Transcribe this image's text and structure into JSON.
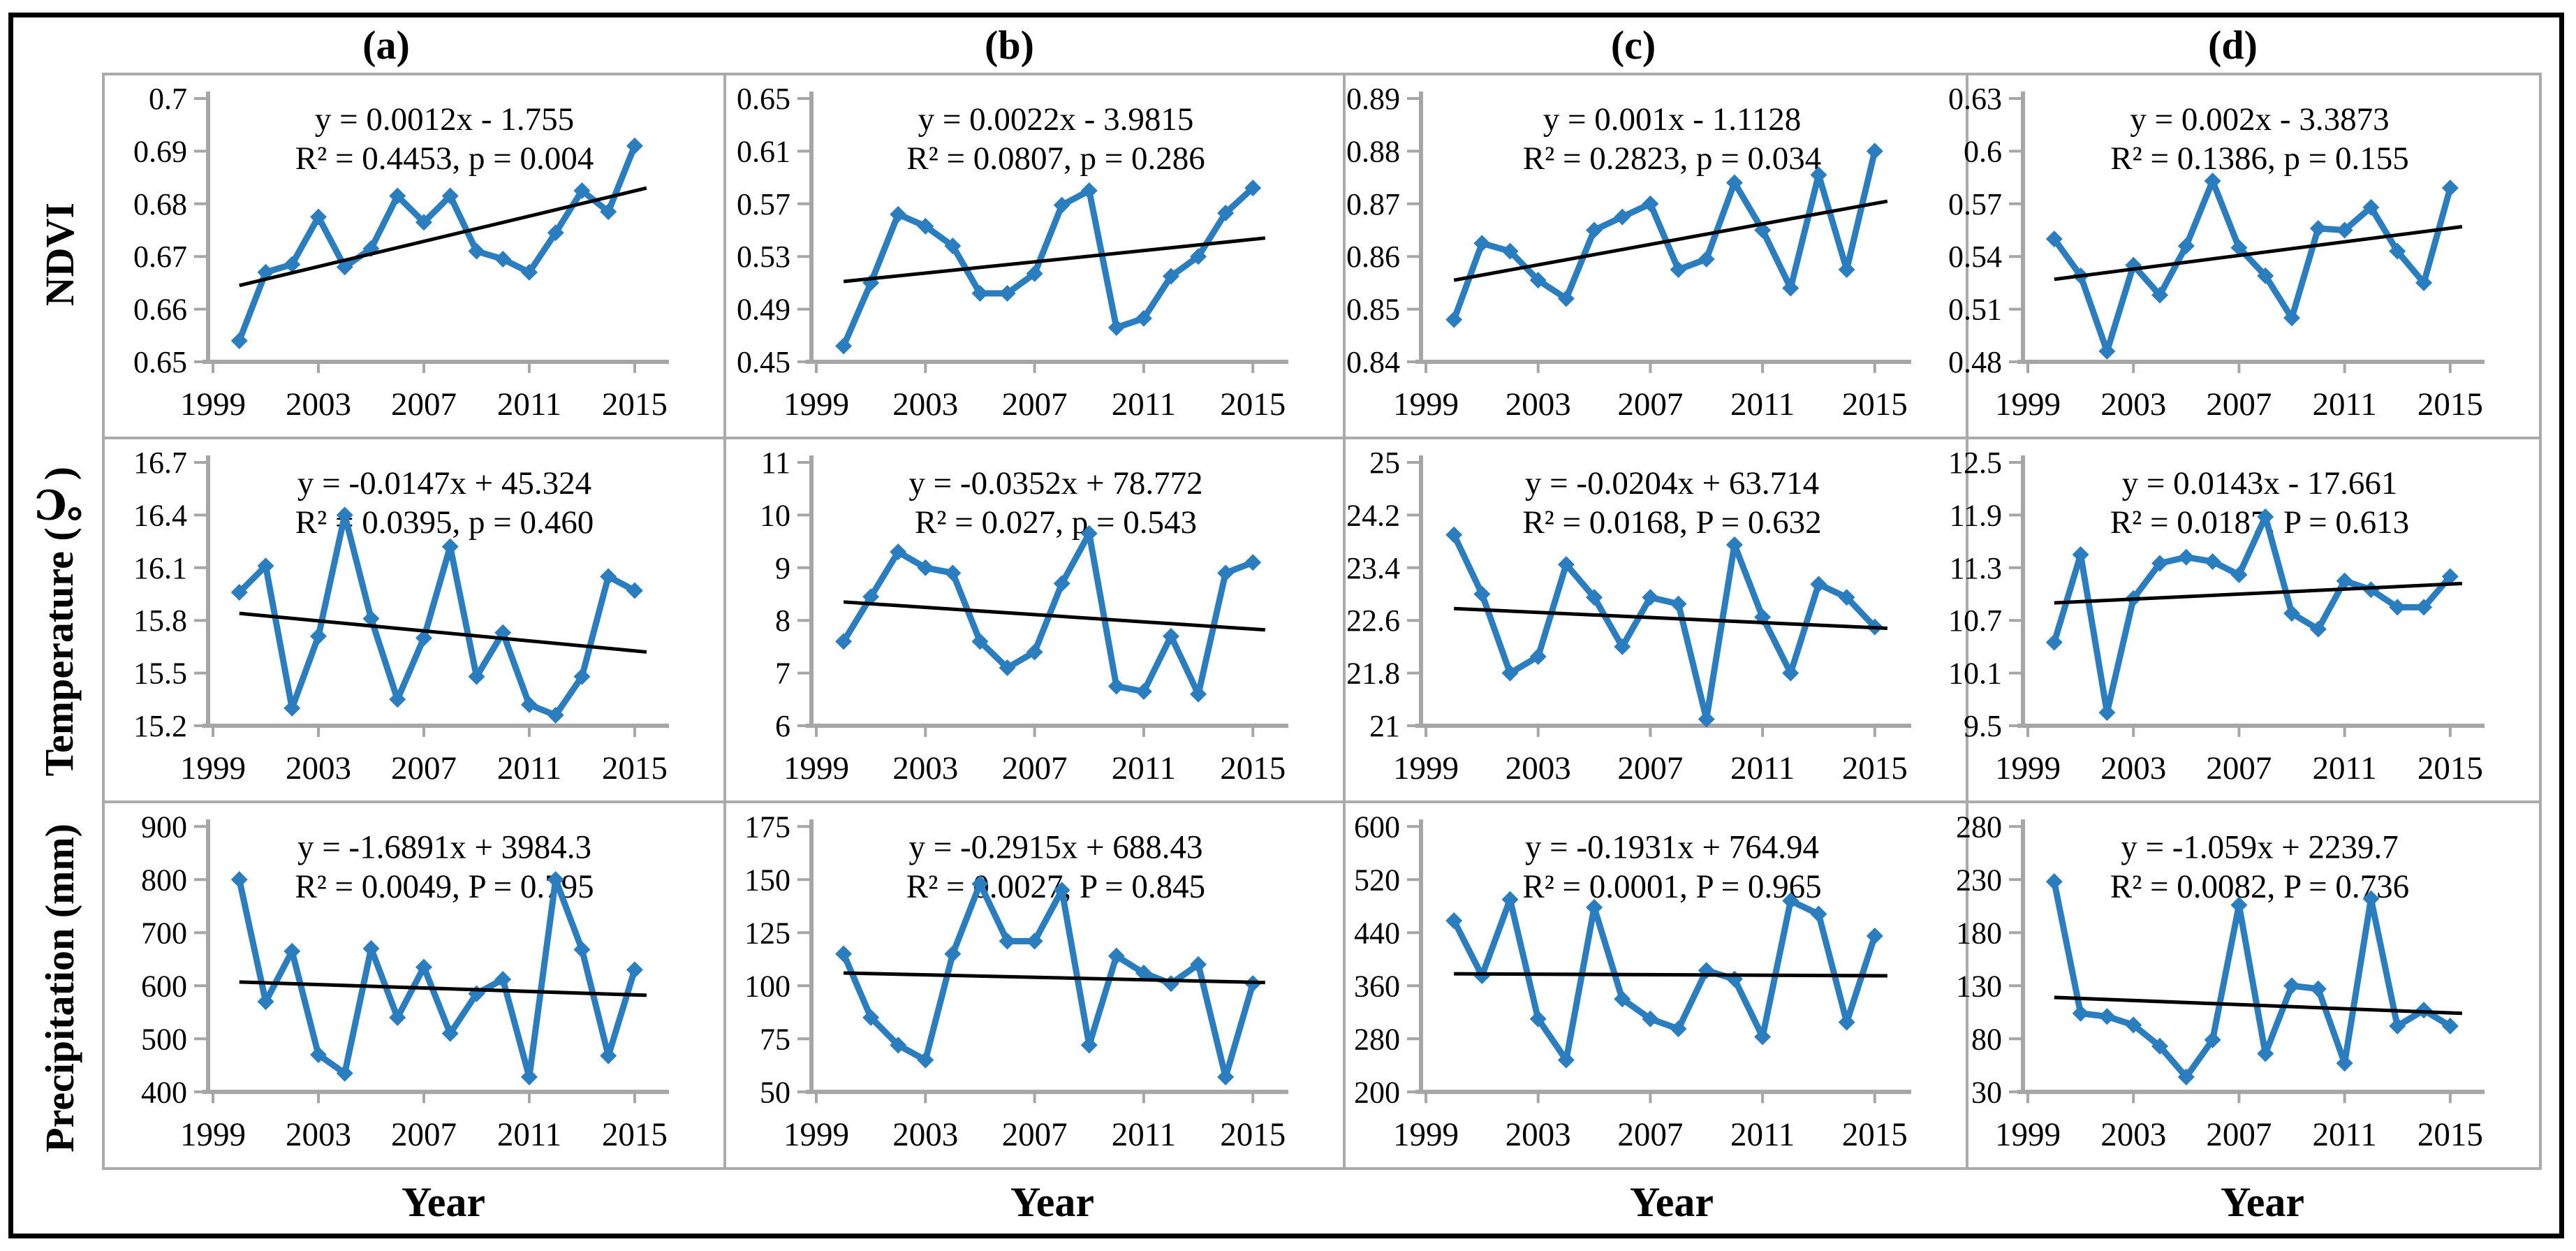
{
  "figure": {
    "col_headers": [
      "(a)",
      "(b)",
      "(c)",
      "(d)"
    ],
    "row_labels": [
      "NDVI",
      "Temperature (℃)",
      "Precipitation (mm)"
    ],
    "x_axis_label": "Year",
    "x_tick_labels": [
      "1999",
      "2003",
      "2007",
      "2011",
      "2015"
    ],
    "colors": {
      "line": "#2A7EBF",
      "trend": "#000000",
      "axis": "#A6A6A6",
      "panel_border": "#ABABAB",
      "text": "#000000"
    }
  },
  "chart_data": [
    {
      "id": "ndvi-a",
      "type": "line",
      "row": "NDVI",
      "col": "(a)",
      "equation": "y = 0.0012x - 1.755",
      "stats": "R² = 0.4453, p = 0.004",
      "ytick_labels": [
        "0.65",
        "0.66",
        "0.67",
        "0.68",
        "0.69",
        "0.7"
      ],
      "yticks": [
        0.65,
        0.66,
        0.67,
        0.68,
        0.69,
        0.7
      ],
      "ylim": [
        0.65,
        0.7
      ],
      "x": [
        2000,
        2001,
        2002,
        2003,
        2004,
        2005,
        2006,
        2007,
        2008,
        2009,
        2010,
        2011,
        2012,
        2013,
        2014,
        2015
      ],
      "values": [
        0.654,
        0.667,
        0.6685,
        0.6775,
        0.668,
        0.6715,
        0.6815,
        0.6765,
        0.6815,
        0.671,
        0.6695,
        0.667,
        0.6745,
        0.6825,
        0.6785,
        0.691
      ],
      "trend": [
        0.6645,
        0.683
      ]
    },
    {
      "id": "ndvi-b",
      "type": "line",
      "row": "NDVI",
      "col": "(b)",
      "equation": "y = 0.0022x - 3.9815",
      "stats": "R² = 0.0807, p = 0.286",
      "ytick_labels": [
        "0.45",
        "0.49",
        "0.53",
        "0.57",
        "0.61",
        "0.65"
      ],
      "yticks": [
        0.45,
        0.49,
        0.53,
        0.57,
        0.61,
        0.65
      ],
      "ylim": [
        0.45,
        0.65
      ],
      "x": [
        2000,
        2001,
        2002,
        2003,
        2004,
        2005,
        2006,
        2007,
        2008,
        2009,
        2010,
        2011,
        2012,
        2013,
        2014,
        2015
      ],
      "values": [
        0.462,
        0.51,
        0.562,
        0.553,
        0.538,
        0.502,
        0.502,
        0.517,
        0.569,
        0.58,
        0.476,
        0.483,
        0.515,
        0.53,
        0.563,
        0.582
      ],
      "trend": [
        0.511,
        0.544
      ]
    },
    {
      "id": "ndvi-c",
      "type": "line",
      "row": "NDVI",
      "col": "(c)",
      "equation": "y = 0.001x - 1.1128",
      "stats": "R² = 0.2823, p = 0.034",
      "ytick_labels": [
        "0.84",
        "0.85",
        "0.86",
        "0.87",
        "0.88",
        "0.89"
      ],
      "yticks": [
        0.84,
        0.85,
        0.86,
        0.87,
        0.88,
        0.89
      ],
      "ylim": [
        0.84,
        0.89
      ],
      "x": [
        2000,
        2001,
        2002,
        2003,
        2004,
        2005,
        2006,
        2007,
        2008,
        2009,
        2010,
        2011,
        2012,
        2013,
        2014,
        2015
      ],
      "values": [
        0.848,
        0.8625,
        0.861,
        0.8555,
        0.852,
        0.865,
        0.8675,
        0.87,
        0.8575,
        0.8595,
        0.874,
        0.865,
        0.854,
        0.8755,
        0.8575,
        0.88
      ],
      "trend": [
        0.8555,
        0.8705
      ]
    },
    {
      "id": "ndvi-d",
      "type": "line",
      "row": "NDVI",
      "col": "(d)",
      "equation": "y = 0.002x - 3.3873",
      "stats": "R² = 0.1386, p = 0.155",
      "ytick_labels": [
        "0.48",
        "0.51",
        "0.54",
        "0.57",
        "0.6",
        "0.63"
      ],
      "yticks": [
        0.48,
        0.51,
        0.54,
        0.57,
        0.6,
        0.63
      ],
      "ylim": [
        0.48,
        0.63
      ],
      "x": [
        2000,
        2001,
        2002,
        2003,
        2004,
        2005,
        2006,
        2007,
        2008,
        2009,
        2010,
        2011,
        2012,
        2013,
        2014,
        2015
      ],
      "values": [
        0.55,
        0.529,
        0.486,
        0.535,
        0.518,
        0.546,
        0.583,
        0.545,
        0.529,
        0.505,
        0.556,
        0.555,
        0.568,
        0.543,
        0.525,
        0.579
      ],
      "trend": [
        0.527,
        0.557
      ]
    },
    {
      "id": "temp-a",
      "type": "line",
      "row": "Temperature (℃)",
      "col": "(a)",
      "equation": "y = -0.0147x + 45.324",
      "stats": "R² = 0.0395, p = 0.460",
      "ytick_labels": [
        "15.2",
        "15.5",
        "15.8",
        "16.1",
        "16.4",
        "16.7"
      ],
      "yticks": [
        15.2,
        15.5,
        15.8,
        16.1,
        16.4,
        16.7
      ],
      "ylim": [
        15.2,
        16.7
      ],
      "x": [
        2000,
        2001,
        2002,
        2003,
        2004,
        2005,
        2006,
        2007,
        2008,
        2009,
        2010,
        2011,
        2012,
        2013,
        2014,
        2015
      ],
      "values": [
        15.96,
        16.11,
        15.3,
        15.71,
        16.4,
        15.81,
        15.35,
        15.7,
        16.22,
        15.48,
        15.73,
        15.32,
        15.26,
        15.48,
        16.05,
        15.97
      ],
      "trend": [
        15.84,
        15.62
      ]
    },
    {
      "id": "temp-b",
      "type": "line",
      "row": "Temperature (℃)",
      "col": "(b)",
      "equation": "y = -0.0352x + 78.772",
      "stats": "R² = 0.027, p = 0.543",
      "ytick_labels": [
        "6",
        "7",
        "8",
        "9",
        "10",
        "11"
      ],
      "yticks": [
        6,
        7,
        8,
        9,
        10,
        11
      ],
      "ylim": [
        6,
        11
      ],
      "x": [
        2000,
        2001,
        2002,
        2003,
        2004,
        2005,
        2006,
        2007,
        2008,
        2009,
        2010,
        2011,
        2012,
        2013,
        2014,
        2015
      ],
      "values": [
        7.6,
        8.45,
        9.3,
        9.0,
        8.9,
        7.6,
        7.1,
        7.4,
        8.7,
        9.65,
        6.75,
        6.65,
        7.7,
        6.6,
        8.9,
        9.1
      ],
      "trend": [
        8.35,
        7.82
      ]
    },
    {
      "id": "temp-c",
      "type": "line",
      "row": "Temperature (℃)",
      "col": "(c)",
      "equation": "y = -0.0204x + 63.714",
      "stats": "R² = 0.0168, P = 0.632",
      "ytick_labels": [
        "21",
        "21.8",
        "22.6",
        "23.4",
        "24.2",
        "25"
      ],
      "yticks": [
        21,
        21.8,
        22.6,
        23.4,
        24.2,
        25
      ],
      "ylim": [
        21,
        25
      ],
      "x": [
        2000,
        2001,
        2002,
        2003,
        2004,
        2005,
        2006,
        2007,
        2008,
        2009,
        2010,
        2011,
        2012,
        2013,
        2014,
        2015
      ],
      "values": [
        23.9,
        23.0,
        21.8,
        22.05,
        23.45,
        22.95,
        22.2,
        22.95,
        22.85,
        21.1,
        23.75,
        22.65,
        21.8,
        23.15,
        22.95,
        22.5
      ],
      "trend": [
        22.78,
        22.48
      ]
    },
    {
      "id": "temp-d",
      "type": "line",
      "row": "Temperature (℃)",
      "col": "(d)",
      "equation": "y = 0.0143x - 17.661",
      "stats": "R² = 0.0187, P = 0.613",
      "ytick_labels": [
        "9.5",
        "10.1",
        "10.7",
        "11.3",
        "11.9",
        "12.5"
      ],
      "yticks": [
        9.5,
        10.1,
        10.7,
        11.3,
        11.9,
        12.5
      ],
      "ylim": [
        9.5,
        12.5
      ],
      "x": [
        2000,
        2001,
        2002,
        2003,
        2004,
        2005,
        2006,
        2007,
        2008,
        2009,
        2010,
        2011,
        2012,
        2013,
        2014,
        2015
      ],
      "values": [
        10.45,
        11.45,
        9.65,
        10.95,
        11.35,
        11.42,
        11.37,
        11.22,
        11.88,
        10.78,
        10.6,
        11.15,
        11.05,
        10.85,
        10.85,
        11.2
      ],
      "trend": [
        10.9,
        11.12
      ]
    },
    {
      "id": "precip-a",
      "type": "line",
      "row": "Precipitation (mm)",
      "col": "(a)",
      "equation": "y = -1.6891x + 3984.3",
      "stats": "R² = 0.0049, P = 0.795",
      "ytick_labels": [
        "400",
        "500",
        "600",
        "700",
        "800",
        "900"
      ],
      "yticks": [
        400,
        500,
        600,
        700,
        800,
        900
      ],
      "ylim": [
        400,
        900
      ],
      "x": [
        2000,
        2001,
        2002,
        2003,
        2004,
        2005,
        2006,
        2007,
        2008,
        2009,
        2010,
        2011,
        2012,
        2013,
        2014,
        2015
      ],
      "values": [
        800,
        570,
        665,
        470,
        435,
        670,
        540,
        635,
        510,
        585,
        612,
        428,
        800,
        668,
        468,
        630
      ],
      "trend": [
        607,
        582
      ]
    },
    {
      "id": "precip-b",
      "type": "line",
      "row": "Precipitation (mm)",
      "col": "(b)",
      "equation": "y = -0.2915x + 688.43",
      "stats": "R² = 0.0027, P = 0.845",
      "ytick_labels": [
        "50",
        "75",
        "100",
        "125",
        "150",
        "175"
      ],
      "yticks": [
        50,
        75,
        100,
        125,
        150,
        175
      ],
      "ylim": [
        50,
        175
      ],
      "x": [
        2000,
        2001,
        2002,
        2003,
        2004,
        2005,
        2006,
        2007,
        2008,
        2009,
        2010,
        2011,
        2012,
        2013,
        2014,
        2015
      ],
      "values": [
        115,
        85,
        72,
        65,
        115,
        148,
        121,
        121,
        145,
        72,
        114,
        106,
        101,
        110,
        57,
        101
      ],
      "trend": [
        106,
        101.5
      ]
    },
    {
      "id": "precip-c",
      "type": "line",
      "row": "Precipitation (mm)",
      "col": "(c)",
      "equation": "y = -0.1931x + 764.94",
      "stats": "R² = 0.0001, P = 0.965",
      "ytick_labels": [
        "200",
        "280",
        "360",
        "440",
        "520",
        "600"
      ],
      "yticks": [
        200,
        280,
        360,
        440,
        520,
        600
      ],
      "ylim": [
        200,
        600
      ],
      "x": [
        2000,
        2001,
        2002,
        2003,
        2004,
        2005,
        2006,
        2007,
        2008,
        2009,
        2010,
        2011,
        2012,
        2013,
        2014,
        2015
      ],
      "values": [
        458,
        375,
        490,
        310,
        248,
        478,
        340,
        310,
        295,
        383,
        370,
        283,
        488,
        468,
        305,
        435
      ],
      "trend": [
        378,
        375
      ]
    },
    {
      "id": "precip-d",
      "type": "line",
      "row": "Precipitation (mm)",
      "col": "(d)",
      "equation": "y = -1.059x + 2239.7",
      "stats": "R² = 0.0082, P = 0.736",
      "ytick_labels": [
        "30",
        "80",
        "130",
        "180",
        "230",
        "280"
      ],
      "yticks": [
        30,
        80,
        130,
        180,
        230,
        280
      ],
      "ylim": [
        30,
        280
      ],
      "x": [
        2000,
        2001,
        2002,
        2003,
        2004,
        2005,
        2006,
        2007,
        2008,
        2009,
        2010,
        2011,
        2012,
        2013,
        2014,
        2015
      ],
      "values": [
        228,
        104,
        101,
        93,
        73,
        44,
        79,
        206,
        66,
        130,
        127,
        57,
        212,
        92,
        107,
        92
      ],
      "trend": [
        119,
        104
      ]
    }
  ]
}
